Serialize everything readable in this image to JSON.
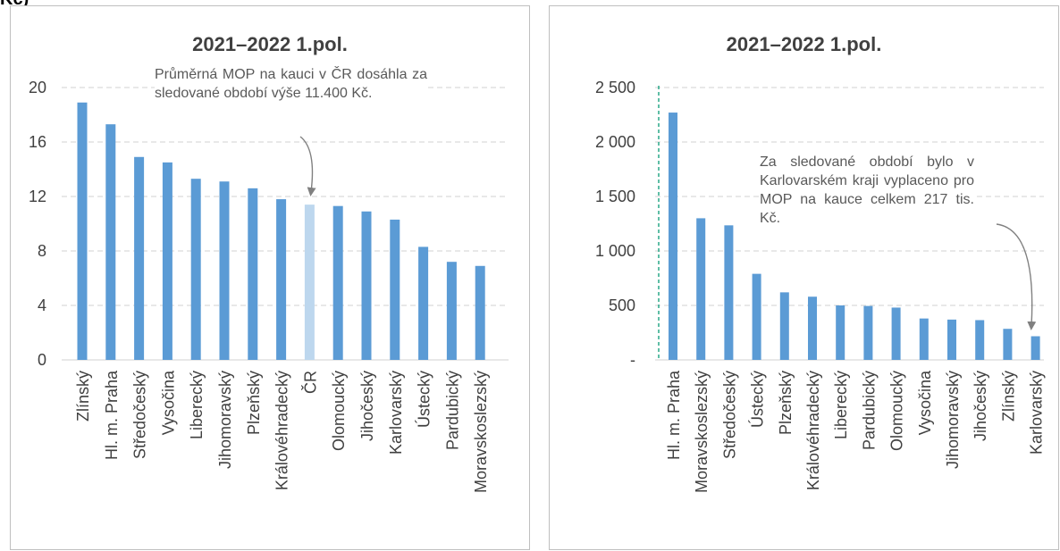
{
  "fragment_text": "Kč)",
  "colors": {
    "bar": "#5b9bd5",
    "highlight": "#bdd7ee",
    "grid": "#d9d9d9",
    "axis": "#d9d9d9",
    "dash_line": "#2aa889",
    "arrow": "#808080"
  },
  "chart_data": [
    {
      "type": "bar",
      "title": "2021–2022 1.pol.",
      "categories": [
        "Zlínský",
        "Hl. m. Praha",
        "Středočeský",
        "Vysočina",
        "Liberecký",
        "Jihomoravský",
        "Plzeňský",
        "Královéhradecký",
        "ČR",
        "Olomoucký",
        "Jihočeský",
        "Karlovarský",
        "Ústecký",
        "Pardubický",
        "Moravskoslezský"
      ],
      "values": [
        18.9,
        17.3,
        14.9,
        14.5,
        13.3,
        13.1,
        12.6,
        11.8,
        11.4,
        11.3,
        10.9,
        10.3,
        8.3,
        7.2,
        6.9
      ],
      "highlight_category": "ČR",
      "ylim": [
        0,
        20
      ],
      "yticks": [
        0,
        4,
        8,
        12,
        16,
        20
      ],
      "ytick_labels": [
        "0",
        "4",
        "8",
        "12",
        "16",
        "20"
      ],
      "grid": true,
      "annotation": "Průměrná MOP na kauci v ČR dosáhla za sledované období výše 11.400 Kč."
    },
    {
      "type": "bar",
      "title": "2021–2022 1.pol.",
      "categories": [
        "Hl. m. Praha",
        "Moravskoslezský",
        "Středočeský",
        "Ústecký",
        "Plzeňský",
        "Královéhradecký",
        "Liberecký",
        "Pardubický",
        "Olomoucký",
        "Vysočina",
        "Jihomoravský",
        "Jihočeský",
        "Zlínský",
        "Karlovarský"
      ],
      "values": [
        2270,
        1300,
        1235,
        790,
        620,
        580,
        500,
        495,
        480,
        380,
        370,
        365,
        285,
        217
      ],
      "ylim": [
        0,
        2500
      ],
      "yticks": [
        0,
        500,
        1000,
        1500,
        2000,
        2500
      ],
      "ytick_labels": [
        "-",
        "500",
        "1 000",
        "1 500",
        "2 000",
        "2 500"
      ],
      "grid": true,
      "annotation": "Za sledované období bylo v Karlovarském kraji vyplaceno pro MOP na kauce celkem 217 tis. Kč."
    }
  ]
}
